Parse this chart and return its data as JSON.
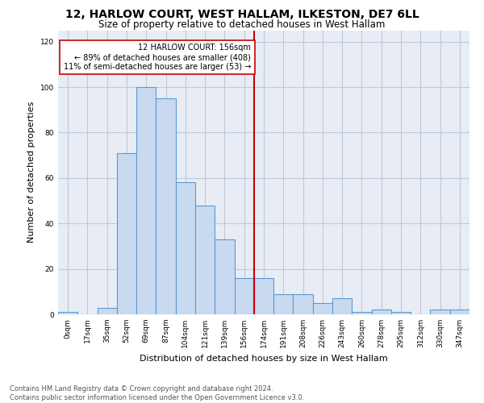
{
  "title": "12, HARLOW COURT, WEST HALLAM, ILKESTON, DE7 6LL",
  "subtitle": "Size of property relative to detached houses in West Hallam",
  "xlabel": "Distribution of detached houses by size in West Hallam",
  "ylabel": "Number of detached properties",
  "footnote1": "Contains HM Land Registry data © Crown copyright and database right 2024.",
  "footnote2": "Contains public sector information licensed under the Open Government Licence v3.0.",
  "annotation_line1": "12 HARLOW COURT: 156sqm",
  "annotation_line2": "← 89% of detached houses are smaller (408)",
  "annotation_line3": "11% of semi-detached houses are larger (53) →",
  "bar_labels": [
    "0sqm",
    "17sqm",
    "35sqm",
    "52sqm",
    "69sqm",
    "87sqm",
    "104sqm",
    "121sqm",
    "139sqm",
    "156sqm",
    "174sqm",
    "191sqm",
    "208sqm",
    "226sqm",
    "243sqm",
    "260sqm",
    "278sqm",
    "295sqm",
    "312sqm",
    "330sqm",
    "347sqm"
  ],
  "bar_values": [
    1,
    0,
    3,
    71,
    100,
    95,
    58,
    48,
    33,
    16,
    16,
    9,
    9,
    5,
    7,
    1,
    2,
    1,
    0,
    2,
    2
  ],
  "property_index": 9,
  "bar_color": "#c9d9f0",
  "bar_edge_color": "#5b9bd5",
  "vline_color": "#cc0000",
  "ylim": [
    0,
    125
  ],
  "yticks": [
    0,
    20,
    40,
    60,
    80,
    100,
    120
  ],
  "annotation_box_color": "#cc0000",
  "annotation_fill": "#ffffff",
  "background_color": "#ffffff",
  "axes_bg_color": "#e8edf5",
  "grid_color": "#c0c8d8",
  "title_fontsize": 10,
  "subtitle_fontsize": 8.5,
  "ylabel_fontsize": 8,
  "xlabel_fontsize": 8,
  "footnote_fontsize": 6,
  "tick_fontsize": 6.5,
  "annotation_fontsize": 7
}
